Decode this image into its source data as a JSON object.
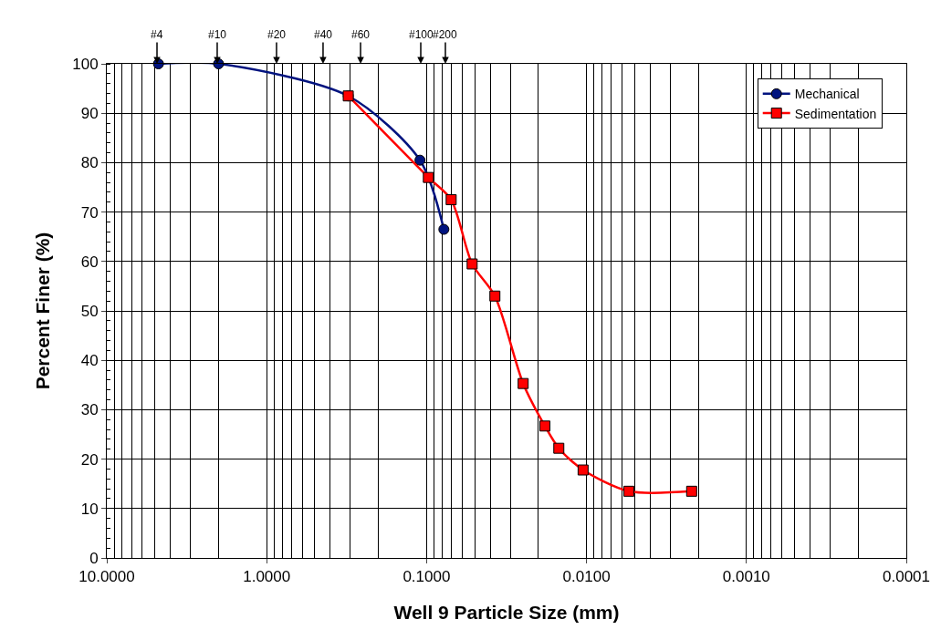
{
  "chart_data": {
    "type": "line",
    "xlabel": "Well 9 Particle Size (mm)",
    "ylabel": "Percent Finer (%)",
    "log": "x",
    "xlim": [
      10,
      0.0001
    ],
    "ylim": [
      0,
      100
    ],
    "xticks": [
      {
        "value": 10,
        "label": "10.0000"
      },
      {
        "value": 1,
        "label": "1.0000"
      },
      {
        "value": 0.1,
        "label": "0.1000"
      },
      {
        "value": 0.01,
        "label": "0.0100"
      },
      {
        "value": 0.001,
        "label": "0.0010"
      },
      {
        "value": 0.0001,
        "label": "0.0001"
      }
    ],
    "yticks": [
      0,
      10,
      20,
      30,
      40,
      50,
      60,
      70,
      80,
      90,
      100
    ],
    "grid": true,
    "legend": "top right",
    "line_style": "solid",
    "series": [
      {
        "name": "Mechanical",
        "color": "#00137f",
        "marker": "circle",
        "x": [
          4.75,
          2.0,
          0.309,
          0.11,
          0.078
        ],
        "values": [
          100,
          100,
          93.5,
          80.5,
          66.5
        ]
      },
      {
        "name": "Sedimentation",
        "color": "#ff0000",
        "marker": "square",
        "x": [
          0.309,
          0.0975,
          0.0702,
          0.0519,
          0.0374,
          0.0249,
          0.0182,
          0.0149,
          0.0105,
          0.00543,
          0.0022
        ],
        "values": [
          93.5,
          77,
          72.5,
          59.5,
          53,
          35.3,
          26.7,
          22.2,
          17.8,
          13.5,
          13.5
        ]
      }
    ],
    "annotations": [
      "#4",
      "#10",
      "#20",
      "#40",
      "#60",
      "#100",
      "#200"
    ]
  }
}
